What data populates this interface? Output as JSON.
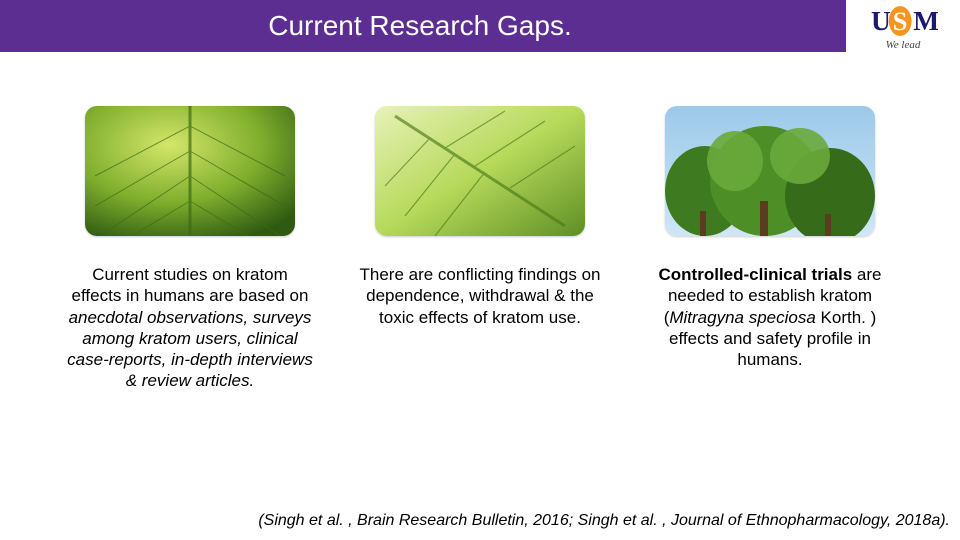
{
  "colors": {
    "title_bg": "#5d2e91",
    "title_fg": "#ffffff",
    "logo_border": "#5d2e91",
    "logo_letters": "#1a1a6e",
    "logo_s_outer": "#f7941d",
    "logo_s_inner": "#ffffff",
    "tagline": "#444444",
    "caption": "#000000",
    "citation": "#000000"
  },
  "typography": {
    "title_fontsize": 28,
    "tagline_fontsize": 11,
    "caption_fontsize": 17,
    "citation_fontsize": 16
  },
  "header": {
    "title": "Current Research Gaps.",
    "tagline": "We lead"
  },
  "columns": [
    {
      "image": "leaf-closeup",
      "caption_html": "Current studies on kratom effects in humans are based on <i>anecdotal observations, surveys among kratom users, clinical case-reports, in-depth interviews &amp; review articles.</i>"
    },
    {
      "image": "leaf-bright",
      "caption_html": "There are conflicting findings on dependence, withdrawal &amp; the toxic effects of kratom use."
    },
    {
      "image": "tree-canopy",
      "caption_html": "<b>Controlled-clinical trials</b> are needed to establish kratom (<i>Mitragyna speciosa</i> Korth. ) effects and safety profile in humans."
    }
  ],
  "citation": "(Singh et al. , Brain Research Bulletin, 2016; Singh et al. , Journal of Ethnopharmacology, 2018a)."
}
